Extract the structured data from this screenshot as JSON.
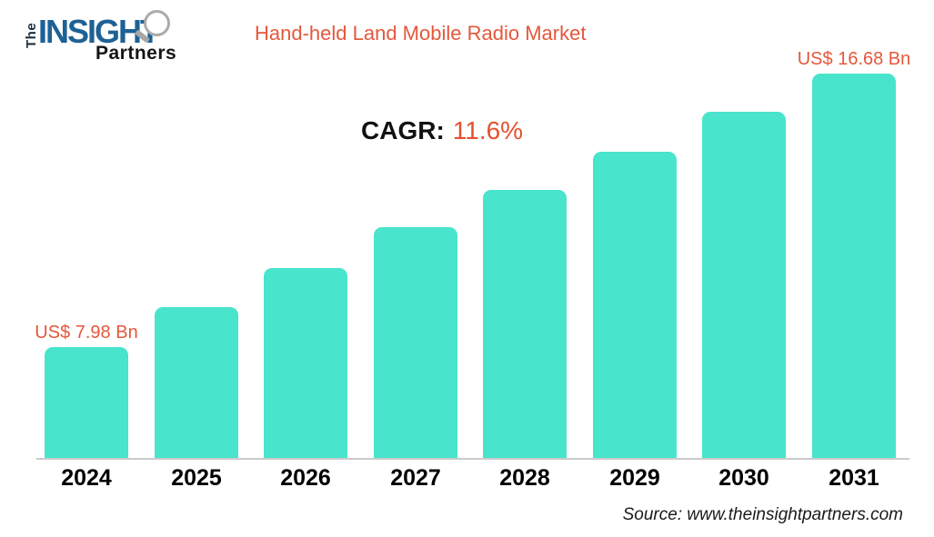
{
  "logo": {
    "the": "The",
    "insight": "INSIGHT",
    "partners": "Partners",
    "insight_color": "#1e6195"
  },
  "header": {
    "title": "Hand-held Land Mobile Radio Market",
    "title_color": "#e4583c"
  },
  "cagr": {
    "label": "CAGR:",
    "value": "11.6%"
  },
  "chart_data": {
    "type": "bar",
    "title": "Hand-held Land Mobile Radio Market",
    "unit": "US$ Bn",
    "categories": [
      "2024",
      "2025",
      "2026",
      "2027",
      "2028",
      "2029",
      "2030",
      "2031"
    ],
    "values": [
      7.98,
      9.25,
      10.49,
      11.79,
      12.98,
      14.19,
      15.46,
      16.68
    ],
    "labeled_points": [
      {
        "index": 0,
        "label": "US$ 7.98 Bn"
      },
      {
        "index": 7,
        "label": "US$ 16.68 Bn"
      }
    ],
    "cagr": "11.6%",
    "bar_color": "#49e4cc",
    "label_color": "#e4583c",
    "xlabel": "",
    "ylabel": "",
    "value_axis_visible": false,
    "baseline_value": 4.43,
    "grid": false,
    "legend": false
  },
  "footer": {
    "source": "Source: www.theinsightpartners.com"
  }
}
